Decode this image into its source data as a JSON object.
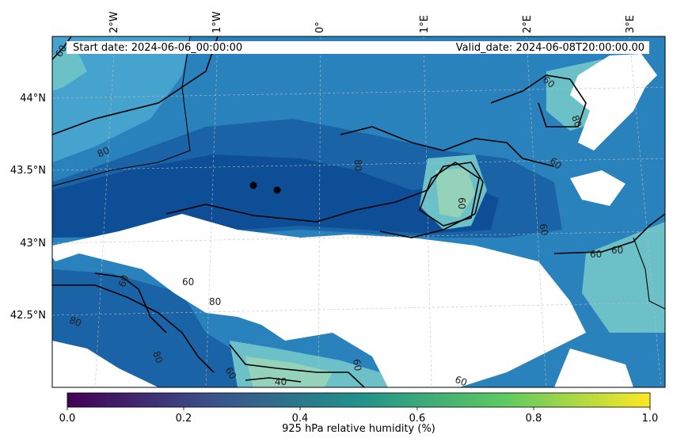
{
  "header": {
    "start_date": "Start date: 2024-06-06_00:00:00",
    "valid_date": "Valid_date: 2024-06-08T20:00:00.00"
  },
  "map": {
    "lon_ticks": [
      "2°W",
      "1°W",
      "0°",
      "1°E",
      "2°E",
      "3°E"
    ],
    "lat_ticks": [
      "44°N",
      "43.5°N",
      "43°N",
      "42.5°N"
    ],
    "contour_labels": [
      "60",
      "80",
      "80",
      "60",
      "80",
      "60",
      "60",
      "60",
      "60",
      "80",
      "60",
      "60",
      "60",
      "80",
      "60",
      "40",
      "60",
      "80",
      "60"
    ],
    "colors": {
      "deep": "#0d4e96",
      "dark": "#1a63a6",
      "mid": "#2a82bd",
      "light": "#45a3cd",
      "pale": "#6cc1c9",
      "mint": "#94d2ba",
      "missing": "#ffffff"
    }
  },
  "colorbar": {
    "label": "925 hPa relative humidity (%)",
    "ticks": [
      "0.0",
      "0.2",
      "0.4",
      "0.6",
      "0.8",
      "1.0"
    ],
    "colormap": [
      "#440154",
      "#3b528b",
      "#21918c",
      "#5ec962",
      "#fde725"
    ]
  }
}
